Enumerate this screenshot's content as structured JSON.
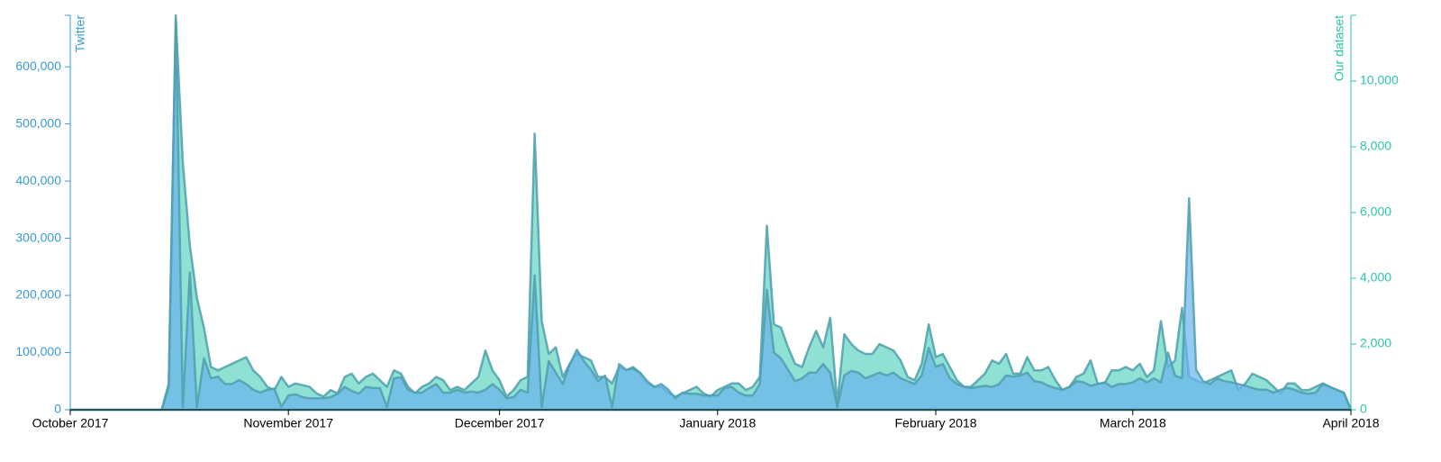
{
  "chart_data": {
    "type": "area",
    "xlim": [
      "2017-10",
      "2018-04"
    ],
    "xticks": [
      {
        "value": "2017-10",
        "label": "October 2017"
      },
      {
        "value": "2017-11",
        "label": "November 2017"
      },
      {
        "value": "2017-12",
        "label": "December 2017"
      },
      {
        "value": "2018-01",
        "label": "January 2018"
      },
      {
        "value": "2018-02",
        "label": "February 2018"
      },
      {
        "value": "2018-03",
        "label": "March 2018"
      },
      {
        "value": "2018-04",
        "label": "April 2018"
      }
    ],
    "ylim": [
      0,
      690000
    ],
    "yticks": [
      0,
      {
        "value": 100000,
        "label": "100,000"
      },
      {
        "value": 200000,
        "label": "200,000"
      },
      {
        "value": 300000,
        "label": "300,000"
      },
      {
        "value": 400000,
        "label": "400,000"
      },
      {
        "value": 500000,
        "label": "500,000"
      },
      {
        "value": 600000,
        "label": "600,000"
      }
    ],
    "y2lim": [
      0,
      12000
    ],
    "y2ticks": [
      0,
      {
        "value": 2000,
        "label": "2,000"
      },
      {
        "value": 4000,
        "label": "4,000"
      },
      {
        "value": 6000,
        "label": "6,000"
      },
      {
        "value": 8000,
        "label": "8,000"
      },
      {
        "value": 10000,
        "label": "10,000"
      }
    ],
    "axis_colors": {
      "y": "#3a9ad9",
      "y2": "#2cc4b0"
    },
    "series": [
      {
        "name": "Our dataset",
        "axis": "y2",
        "color": "#5fd4c2",
        "values": [
          0,
          0,
          0,
          0,
          0,
          0,
          0,
          0,
          0,
          0,
          0,
          0,
          0,
          0,
          800,
          11900,
          7500,
          5000,
          3400,
          2500,
          1300,
          1200,
          1300,
          1400,
          1500,
          1600,
          1200,
          1000,
          700,
          600,
          1000,
          700,
          800,
          750,
          700,
          500,
          400,
          600,
          500,
          1000,
          1100,
          800,
          1000,
          1100,
          900,
          700,
          1200,
          1100,
          700,
          500,
          700,
          800,
          1000,
          900,
          600,
          700,
          600,
          800,
          1000,
          1800,
          1200,
          900,
          400,
          600,
          900,
          1000,
          8400,
          2700,
          1700,
          1900,
          1000,
          1400,
          1700,
          1600,
          1500,
          1000,
          1000,
          800,
          1300,
          1200,
          1300,
          1100,
          800,
          700,
          700,
          500,
          400,
          500,
          600,
          700,
          500,
          400,
          600,
          700,
          800,
          800,
          600,
          700,
          1000,
          5600,
          2600,
          2500,
          1900,
          1400,
          1300,
          1900,
          2400,
          1900,
          2800,
          200,
          2300,
          2000,
          1800,
          1700,
          1700,
          2000,
          1900,
          1800,
          1500,
          1000,
          900,
          1400,
          2600,
          1600,
          1700,
          1300,
          900,
          700,
          700,
          900,
          1100,
          1500,
          1400,
          1700,
          1100,
          1100,
          1600,
          1200,
          1200,
          1300,
          900,
          600,
          700,
          1000,
          1100,
          1500,
          800,
          800,
          1200,
          1200,
          1300,
          1200,
          1400,
          1000,
          1200,
          2700,
          1300,
          1500,
          3100,
          1000,
          900,
          800,
          900,
          1000,
          1100,
          1200,
          600,
          800,
          1100,
          1000,
          900,
          700,
          500,
          800,
          800,
          600,
          600,
          700,
          800,
          700,
          600,
          500,
          0
        ]
      },
      {
        "name": "Twitter",
        "axis": "y",
        "color": "#6ab4ee",
        "values": [
          0,
          0,
          0,
          0,
          0,
          0,
          0,
          0,
          0,
          0,
          0,
          0,
          0,
          0,
          40000,
          690000,
          5000,
          240000,
          5000,
          90000,
          55000,
          58000,
          45000,
          45000,
          52000,
          45000,
          35000,
          30000,
          35000,
          37000,
          5000,
          25000,
          27000,
          22000,
          20000,
          20000,
          20000,
          22000,
          28000,
          40000,
          33000,
          28000,
          40000,
          38000,
          38000,
          5000,
          55000,
          57000,
          35000,
          30000,
          30000,
          38000,
          45000,
          30000,
          30000,
          35000,
          30000,
          32000,
          30000,
          35000,
          45000,
          35000,
          20000,
          22000,
          35000,
          30000,
          235000,
          5000,
          85000,
          65000,
          45000,
          80000,
          105000,
          85000,
          70000,
          50000,
          60000,
          5000,
          80000,
          70000,
          72000,
          65000,
          50000,
          40000,
          45000,
          35000,
          20000,
          30000,
          28000,
          28000,
          25000,
          25000,
          25000,
          38000,
          40000,
          30000,
          25000,
          25000,
          45000,
          210000,
          100000,
          90000,
          70000,
          50000,
          55000,
          65000,
          65000,
          80000,
          65000,
          5000,
          60000,
          68000,
          65000,
          55000,
          60000,
          65000,
          60000,
          65000,
          55000,
          50000,
          45000,
          60000,
          108000,
          75000,
          80000,
          55000,
          45000,
          40000,
          38000,
          40000,
          42000,
          40000,
          45000,
          60000,
          58000,
          60000,
          65000,
          50000,
          48000,
          42000,
          38000,
          35000,
          40000,
          50000,
          48000,
          42000,
          45000,
          48000,
          40000,
          45000,
          45000,
          48000,
          55000,
          48000,
          55000,
          48000,
          100000,
          60000,
          55000,
          370000,
          70000,
          50000,
          45000,
          55000,
          50000,
          48000,
          45000,
          42000,
          38000,
          35000,
          35000,
          30000,
          35000,
          38000,
          35000,
          30000,
          28000,
          30000,
          45000,
          40000,
          35000,
          30000,
          0
        ]
      }
    ]
  }
}
